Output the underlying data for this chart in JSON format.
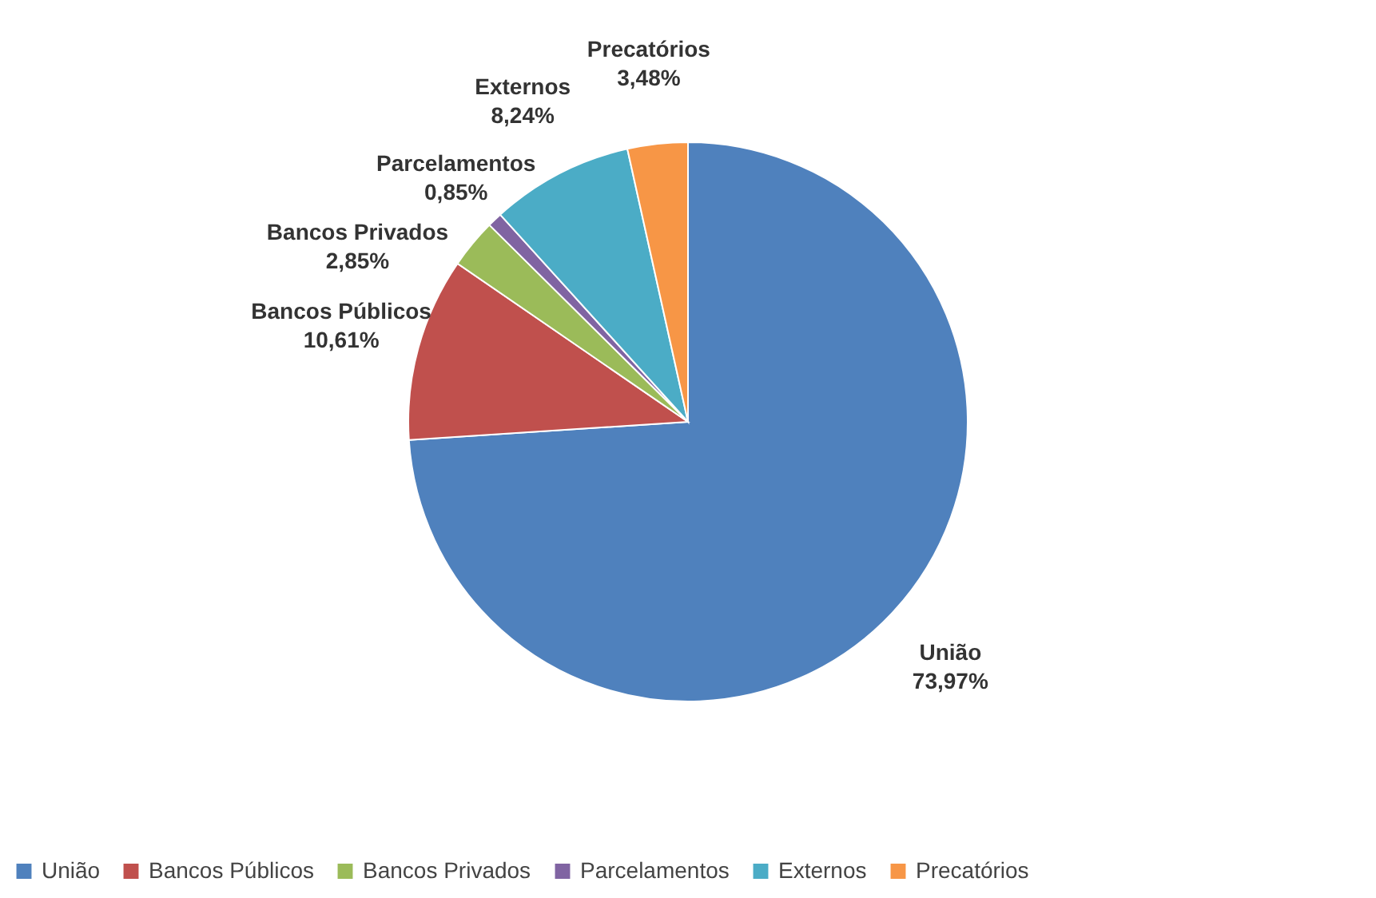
{
  "chart_data": {
    "type": "pie",
    "categories": [
      "União",
      "Bancos Públicos",
      "Bancos Privados",
      "Parcelamentos",
      "Externos",
      "Precatórios"
    ],
    "values": [
      73.97,
      10.61,
      2.85,
      0.85,
      8.24,
      3.48
    ],
    "colors": [
      "#4f81bd",
      "#c0504d",
      "#9bbb59",
      "#8064a2",
      "#4bacc6",
      "#f79646"
    ],
    "value_labels": [
      "73,97%",
      "10,61%",
      "2,85%",
      "0,85%",
      "8,24%",
      "3,48%"
    ],
    "legend": "bottom"
  }
}
